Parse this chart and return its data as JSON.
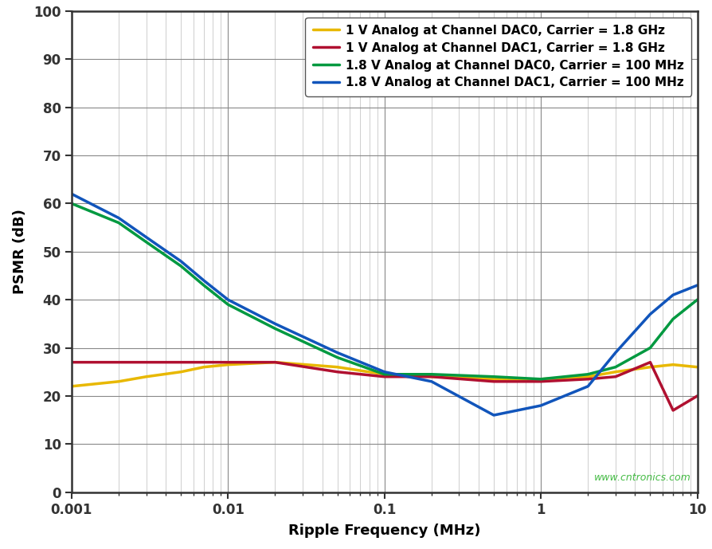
{
  "xlabel": "Ripple Frequency (MHz)",
  "ylabel": "PSMR (dB)",
  "xlim": [
    0.001,
    10
  ],
  "ylim": [
    0,
    100
  ],
  "yticks": [
    0,
    10,
    20,
    30,
    40,
    50,
    60,
    70,
    80,
    90,
    100
  ],
  "watermark": "www.cntronics.com",
  "bg_color": "#FFFFFF",
  "grid_major_color": "#888888",
  "grid_minor_color": "#BBBBBB",
  "spine_color": "#333333",
  "series": [
    {
      "label": "1 V Analog at Channel DAC0, Carrier = 1.8 GHz",
      "color": "#E8B800",
      "linewidth": 2.5,
      "x": [
        0.001,
        0.002,
        0.003,
        0.005,
        0.007,
        0.01,
        0.02,
        0.05,
        0.1,
        0.2,
        0.5,
        1.0,
        2.0,
        3.0,
        5.0,
        7.0,
        10.0
      ],
      "y": [
        22,
        23,
        24,
        25,
        26,
        26.5,
        27,
        26,
        24.5,
        24,
        23.5,
        23.5,
        24,
        25,
        26,
        26.5,
        26
      ]
    },
    {
      "label": "1 V Analog at Channel DAC1, Carrier = 1.8 GHz",
      "color": "#B01030",
      "linewidth": 2.5,
      "x": [
        0.001,
        0.002,
        0.003,
        0.005,
        0.007,
        0.01,
        0.02,
        0.05,
        0.1,
        0.2,
        0.5,
        1.0,
        2.0,
        3.0,
        5.0,
        7.0,
        10.0
      ],
      "y": [
        27,
        27,
        27,
        27,
        27,
        27,
        27,
        25,
        24,
        24,
        23,
        23,
        23.5,
        24,
        27,
        17,
        20
      ]
    },
    {
      "label": "1.8 V Analog at Channel DAC0, Carrier = 100 MHz",
      "color": "#009940",
      "linewidth": 2.5,
      "x": [
        0.001,
        0.002,
        0.003,
        0.005,
        0.007,
        0.01,
        0.02,
        0.05,
        0.1,
        0.2,
        0.5,
        1.0,
        2.0,
        3.0,
        5.0,
        7.0,
        10.0
      ],
      "y": [
        60,
        56,
        52,
        47,
        43,
        39,
        34,
        28,
        24.5,
        24.5,
        24,
        23.5,
        24.5,
        26,
        30,
        36,
        40
      ]
    },
    {
      "label": "1.8 V Analog at Channel DAC1, Carrier = 100 MHz",
      "color": "#1155BB",
      "linewidth": 2.5,
      "x": [
        0.001,
        0.002,
        0.003,
        0.005,
        0.007,
        0.01,
        0.02,
        0.05,
        0.1,
        0.2,
        0.5,
        1.0,
        2.0,
        3.0,
        5.0,
        7.0,
        10.0
      ],
      "y": [
        62,
        57,
        53,
        48,
        44,
        40,
        35,
        29,
        25,
        23,
        16,
        18,
        22,
        29,
        37,
        41,
        43
      ]
    }
  ]
}
